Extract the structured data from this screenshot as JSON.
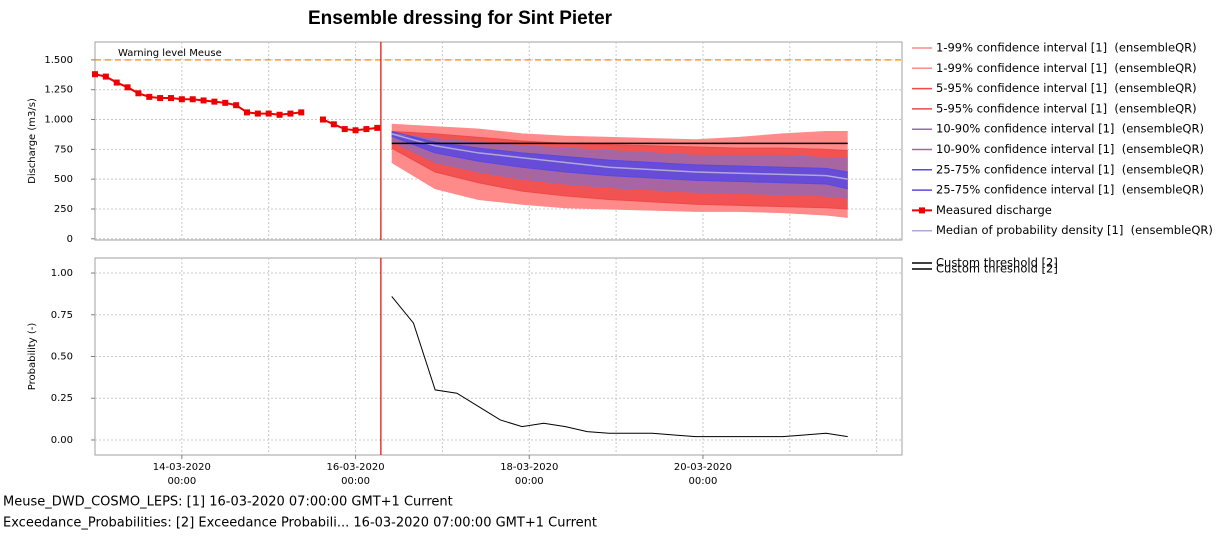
{
  "chart_data": [
    {
      "type": "band",
      "title": "Ensemble dressing for Sint Pieter",
      "ylabel": "Discharge (m3/s)",
      "xlim": [
        "13-03-2020 00:00",
        "22-03-2020 07:00"
      ],
      "xticks": [
        "14-03-2020 00:00",
        "16-03-2020 00:00",
        "18-03-2020 00:00",
        "20-03-2020 00:00"
      ],
      "xgrid": [
        "14-03-2020 00:00",
        "15-03-2020 00:00",
        "16-03-2020 00:00",
        "17-03-2020 00:00",
        "18-03-2020 00:00",
        "19-03-2020 00:00",
        "20-03-2020 00:00",
        "21-03-2020 00:00",
        "22-03-2020 00:00"
      ],
      "ylim": [
        -10,
        1650
      ],
      "yticks": [
        0,
        250,
        500,
        750,
        {
          "value": 1000,
          "label": "1.000"
        },
        {
          "value": 1250,
          "label": "1.250"
        },
        {
          "value": 1500,
          "label": "1.500"
        }
      ],
      "grid": true,
      "forecast_time": "16-03-2020 07:00",
      "warning": {
        "label": "Warning level Meuse",
        "value": 1500,
        "color": "#ff8c00"
      },
      "threshold": {
        "name": "Custom threshold [2]",
        "value": 800,
        "color": "#000000",
        "x": [
          "16-03-2020 10:00",
          "21-03-2020 16:00"
        ]
      },
      "x": [
        "16-03-2020 10:00",
        "16-03-2020 22:00",
        "17-03-2020 10:00",
        "17-03-2020 22:00",
        "18-03-2020 10:00",
        "18-03-2020 22:00",
        "19-03-2020 10:00",
        "19-03-2020 22:00",
        "20-03-2020 10:00",
        "20-03-2020 22:00",
        "21-03-2020 10:00",
        "21-03-2020 16:00"
      ],
      "series": [
        {
          "name": "1-99% confidence interval [1]  (ensembleQR)",
          "color": "#ff8a8a",
          "band": true,
          "values": [
            640,
            420,
            330,
            290,
            260,
            250,
            240,
            230,
            230,
            220,
            200,
            180
          ]
        },
        {
          "name": "1-99% confidence interval [1]  (ensembleQR)",
          "color": "#ff8a8a",
          "band": true,
          "values": [
            960,
            940,
            920,
            880,
            860,
            850,
            840,
            830,
            850,
            880,
            900,
            900
          ]
        },
        {
          "name": "5-95% confidence interval [1]  (ensembleQR)",
          "color": "#f04848",
          "band": true,
          "values": [
            760,
            560,
            470,
            400,
            360,
            330,
            310,
            290,
            280,
            270,
            260,
            250
          ]
        },
        {
          "name": "5-95% confidence interval [1]  (ensembleQR)",
          "color": "#f04848",
          "band": true,
          "values": [
            900,
            880,
            850,
            820,
            800,
            790,
            780,
            770,
            760,
            760,
            750,
            740
          ]
        },
        {
          "name": "10-90% confidence interval [1]  (ensembleQR)",
          "color": "#9a6ab0",
          "band": true,
          "values": [
            820,
            640,
            560,
            500,
            460,
            430,
            410,
            390,
            380,
            370,
            360,
            340
          ]
        },
        {
          "name": "10-90% confidence interval [1]  (ensembleQR)",
          "color": "#9a6ab0",
          "band": true,
          "values": [
            880,
            840,
            810,
            780,
            760,
            740,
            720,
            700,
            700,
            700,
            680,
            680
          ]
        },
        {
          "name": "25-75% confidence interval [1]  (ensembleQR)",
          "color": "#5a48e0",
          "band": true,
          "values": [
            860,
            720,
            650,
            600,
            560,
            530,
            510,
            490,
            480,
            470,
            460,
            420
          ]
        },
        {
          "name": "25-75% confidence interval [1]  (ensembleQR)",
          "color": "#5a48e0",
          "band": true,
          "values": [
            900,
            810,
            760,
            720,
            690,
            660,
            640,
            620,
            610,
            600,
            590,
            560
          ]
        },
        {
          "name": "Measured discharge",
          "color": "#ee0000",
          "markers": true,
          "x": [
            "13-03-2020 00:00",
            "13-03-2020 03:00",
            "13-03-2020 06:00",
            "13-03-2020 09:00",
            "13-03-2020 12:00",
            "13-03-2020 15:00",
            "13-03-2020 18:00",
            "13-03-2020 21:00",
            "14-03-2020 00:00",
            "14-03-2020 03:00",
            "14-03-2020 06:00",
            "14-03-2020 09:00",
            "14-03-2020 12:00",
            "14-03-2020 15:00",
            "14-03-2020 18:00",
            "14-03-2020 21:00",
            "15-03-2020 00:00",
            "15-03-2020 03:00",
            "15-03-2020 06:00",
            "15-03-2020 09:00",
            "15-03-2020 12:00",
            "15-03-2020 15:00",
            "15-03-2020 18:00",
            "15-03-2020 21:00",
            "16-03-2020 00:00",
            "16-03-2020 03:00",
            "16-03-2020 06:00"
          ],
          "values": [
            1380,
            1360,
            1310,
            1270,
            1220,
            1190,
            1180,
            1180,
            1170,
            1170,
            1160,
            1150,
            1140,
            1120,
            1060,
            1050,
            1050,
            1040,
            1050,
            1060,
            null,
            1000,
            960,
            920,
            910,
            920,
            930
          ]
        },
        {
          "name": "Median of probability density [1]  (ensembleQR)",
          "color": "#b0a8d8",
          "values": [
            880,
            780,
            720,
            680,
            640,
            600,
            580,
            560,
            550,
            540,
            530,
            500
          ]
        }
      ]
    },
    {
      "type": "line",
      "ylabel": "Probability (-)",
      "xlim": [
        "13-03-2020 00:00",
        "22-03-2020 07:00"
      ],
      "ylim": [
        -0.09,
        1.09
      ],
      "yticks": [
        {
          "value": 0,
          "label": "0.00"
        },
        0.25,
        {
          "value": 0.5,
          "label": "0.50"
        },
        0.75,
        {
          "value": 1,
          "label": "1.00"
        }
      ],
      "grid": true,
      "series": [
        {
          "name": "Custom threshold [2]",
          "color": "#000000",
          "x": [
            "16-03-2020 10:00",
            "16-03-2020 16:00",
            "16-03-2020 22:00",
            "17-03-2020 04:00",
            "17-03-2020 10:00",
            "17-03-2020 16:00",
            "17-03-2020 22:00",
            "18-03-2020 04:00",
            "18-03-2020 10:00",
            "18-03-2020 16:00",
            "18-03-2020 22:00",
            "19-03-2020 04:00",
            "19-03-2020 10:00",
            "19-03-2020 16:00",
            "19-03-2020 22:00",
            "20-03-2020 04:00",
            "20-03-2020 10:00",
            "20-03-2020 16:00",
            "20-03-2020 22:00",
            "21-03-2020 04:00",
            "21-03-2020 10:00",
            "21-03-2020 16:00"
          ],
          "values": [
            0.86,
            0.7,
            0.3,
            0.28,
            0.2,
            0.12,
            0.08,
            0.1,
            0.08,
            0.05,
            0.04,
            0.04,
            0.04,
            0.03,
            0.02,
            0.02,
            0.02,
            0.02,
            0.02,
            0.03,
            0.04,
            0.02
          ]
        }
      ]
    }
  ],
  "footer": [
    "Meuse_DWD_COSMO_LEPS: [1] 16-03-2020 07:00:00 GMT+1 Current",
    "Exceedance_Probabilities: [2] Exceedance Probabili... 16-03-2020 07:00:00 GMT+1 Current"
  ]
}
